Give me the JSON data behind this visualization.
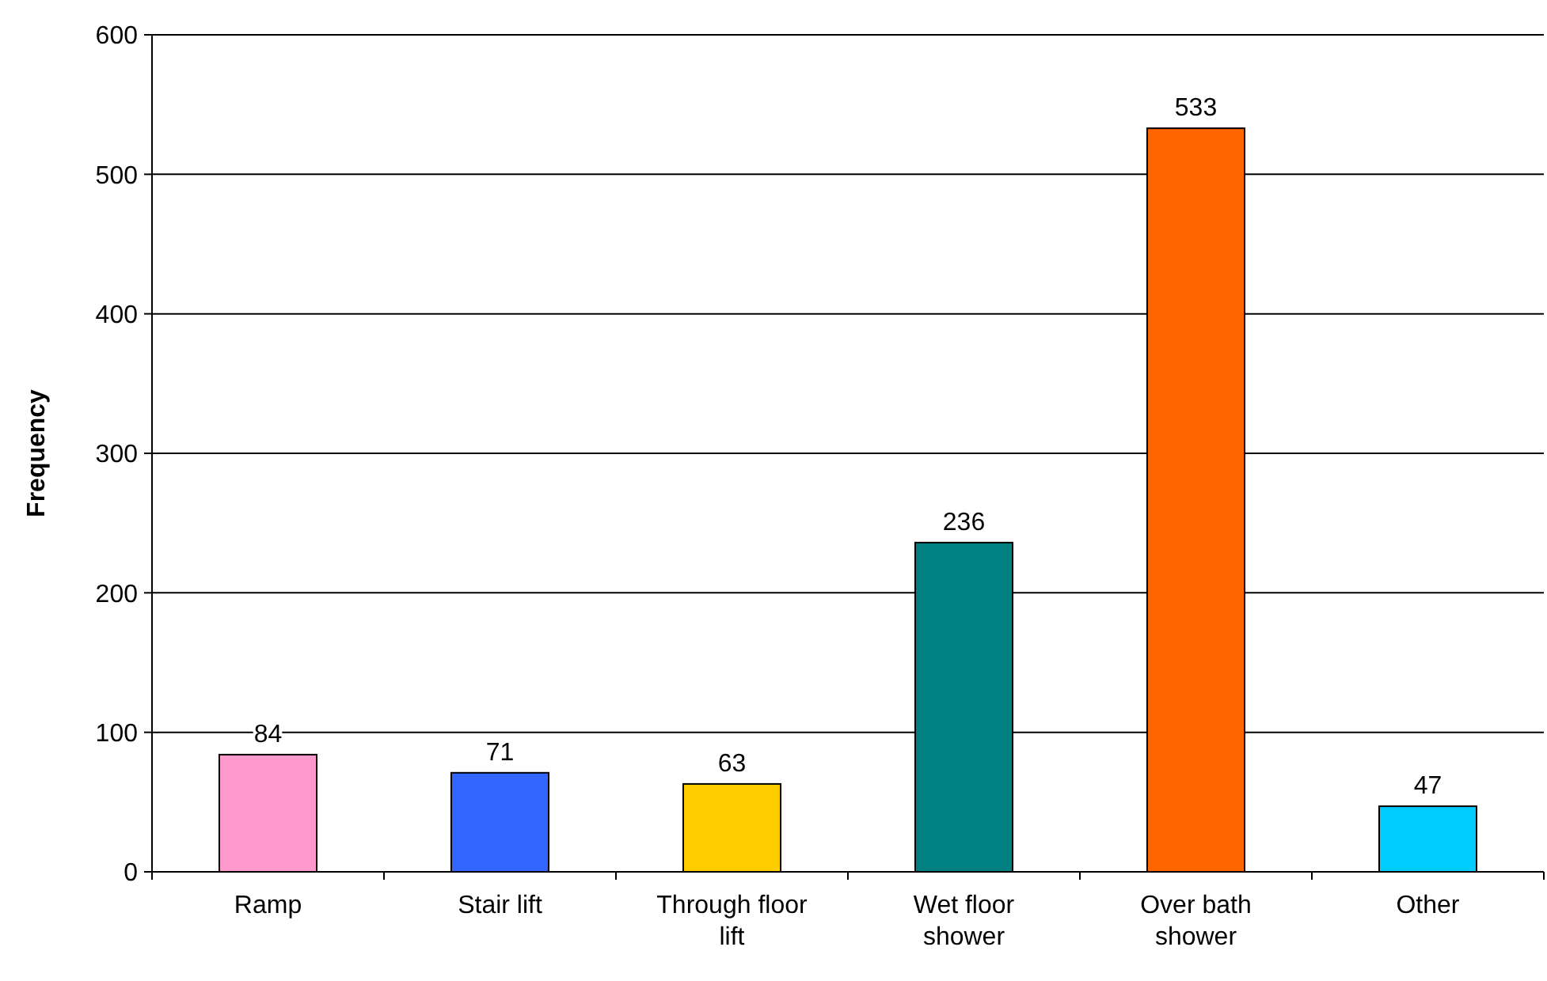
{
  "chart_data": {
    "type": "bar",
    "ylabel": "Frequency",
    "categories": [
      "Ramp",
      "Stair lift",
      "Through floor lift",
      "Wet floor shower",
      "Over bath shower",
      "Other"
    ],
    "values": [
      84,
      71,
      63,
      236,
      533,
      47
    ],
    "colors": [
      "#ff99cc",
      "#3366ff",
      "#ffcc00",
      "#008080",
      "#ff6600",
      "#00ccff"
    ],
    "ylim": [
      0,
      600
    ],
    "yticks": [
      0,
      100,
      200,
      300,
      400,
      500,
      600
    ],
    "grid": "y",
    "data_labels": true
  }
}
